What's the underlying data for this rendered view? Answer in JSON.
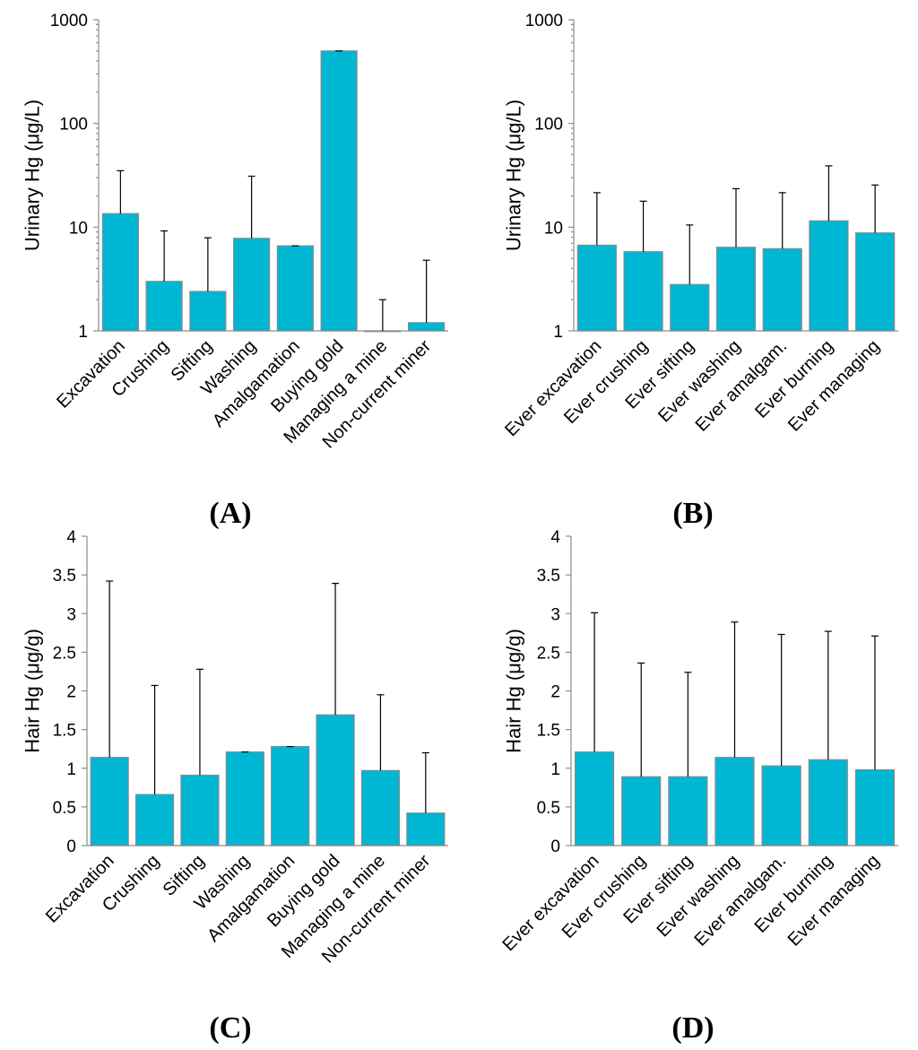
{
  "chart_data": [
    {
      "id": "A",
      "panel_label": "(A)",
      "type": "bar",
      "scale": "log",
      "ylabel": "Urinary Hg (μg/L)",
      "ylim": [
        1,
        1000
      ],
      "yticks": [
        1,
        10,
        100,
        1000
      ],
      "ytick_labels": [
        "1",
        "10",
        "100",
        "1000"
      ],
      "categories": [
        "Excavation",
        "Crushing",
        "Sifting",
        "Washing",
        "Amalgamation",
        "Buying gold",
        "Managing a mine",
        "Non-current miner"
      ],
      "values": [
        13.5,
        3.0,
        2.4,
        7.8,
        6.6,
        500,
        1.0,
        1.2
      ],
      "error_upper": [
        35,
        9.2,
        7.9,
        31,
        6.6,
        500,
        2.0,
        4.8
      ]
    },
    {
      "id": "B",
      "panel_label": "(B)",
      "type": "bar",
      "scale": "log",
      "ylabel": "Urinary Hg (μg/L)",
      "ylim": [
        1,
        1000
      ],
      "yticks": [
        1,
        10,
        100,
        1000
      ],
      "ytick_labels": [
        "1",
        "10",
        "100",
        "1000"
      ],
      "categories": [
        "Ever excavation",
        "Ever crushing",
        "Ever sifting",
        "Ever washing",
        "Ever amalgam.",
        "Ever burning",
        "Ever managing"
      ],
      "values": [
        6.7,
        5.8,
        2.8,
        6.4,
        6.2,
        11.5,
        8.8
      ],
      "error_upper": [
        21.5,
        17.8,
        10.5,
        23.5,
        21.5,
        39,
        25.5
      ]
    },
    {
      "id": "C",
      "panel_label": "(C)",
      "type": "bar",
      "scale": "linear",
      "ylabel": "Hair Hg (μg/g)",
      "ylim": [
        0,
        4
      ],
      "yticks": [
        0,
        0.5,
        1,
        1.5,
        2,
        2.5,
        3,
        3.5,
        4
      ],
      "ytick_labels": [
        "0",
        "0.5",
        "1",
        "1.5",
        "2",
        "2.5",
        "3",
        "3.5",
        "4"
      ],
      "categories": [
        "Excavation",
        "Crushing",
        "Sifting",
        "Washing",
        "Amalgamation",
        "Buying gold",
        "Managing a mine",
        "Non-current miner"
      ],
      "values": [
        1.14,
        0.66,
        0.91,
        1.21,
        1.28,
        1.69,
        0.97,
        0.42
      ],
      "error_upper": [
        3.42,
        2.07,
        2.28,
        1.21,
        1.28,
        3.39,
        1.95,
        1.2
      ]
    },
    {
      "id": "D",
      "panel_label": "(D)",
      "type": "bar",
      "scale": "linear",
      "ylabel": "Hair Hg (μg/g)",
      "ylim": [
        0,
        4
      ],
      "yticks": [
        0,
        0.5,
        1,
        1.5,
        2,
        2.5,
        3,
        3.5,
        4
      ],
      "ytick_labels": [
        "0",
        "0.5",
        "1",
        "1.5",
        "2",
        "2.5",
        "3",
        "3.5",
        "4"
      ],
      "categories": [
        "Ever excavation",
        "Ever crushing",
        "Ever sifting",
        "Ever washing",
        "Ever amalgam.",
        "Ever burning",
        "Ever managing"
      ],
      "values": [
        1.21,
        0.89,
        0.89,
        1.14,
        1.03,
        1.11,
        0.98
      ],
      "error_upper": [
        3.01,
        2.36,
        2.24,
        2.89,
        2.73,
        2.77,
        2.71
      ]
    }
  ],
  "colors": {
    "bar": "#00b7d3",
    "bar_border": "#8a8a8a",
    "axis": "#8c8c8c",
    "error_bar": "#000000"
  }
}
